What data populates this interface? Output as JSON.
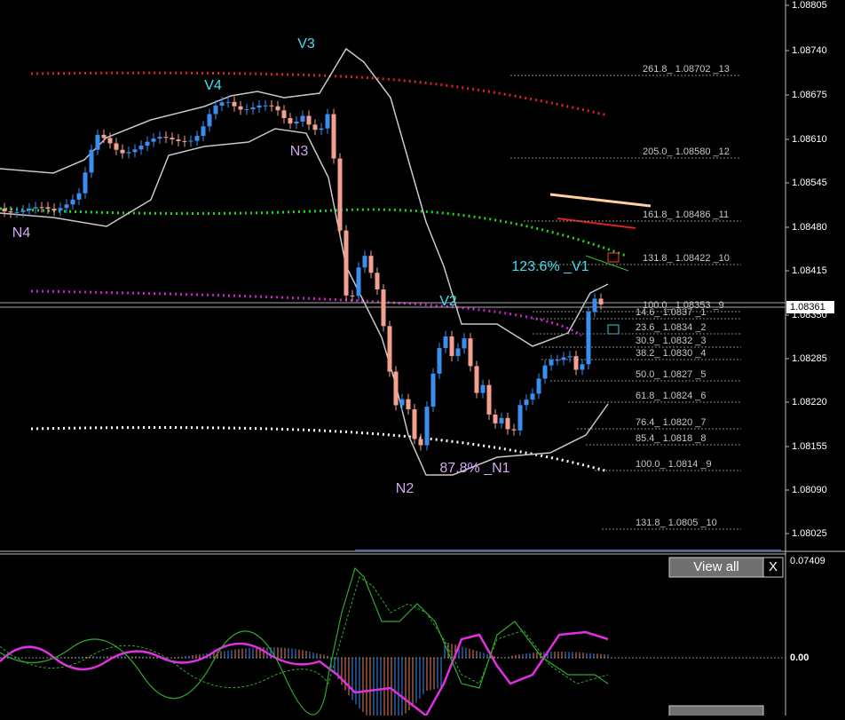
{
  "price_axis": [
    "1.08805",
    "1.08740",
    "1.08675",
    "1.08610",
    "1.08545",
    "1.08480",
    "1.08415",
    "1.08350",
    "1.08285",
    "1.08220",
    "1.08155",
    "1.08090",
    "1.08025"
  ],
  "current_price": "1.08361",
  "fib_levels": [
    "261.8_ 1.08702 _13",
    "205.0_ 1.08580 _12",
    "161.8_ 1.08486 _11",
    "131.8_ 1.08422 _10",
    "100.0_ 1.08353 _9",
    "14.6_ 1.0837 _1",
    "23.6_ 1.0834 _2",
    "30.9_ 1.0832 _3",
    "38.2_ 1.0830 _4",
    "50.0_ 1.0827 _5",
    "61.8_ 1.0824 _6",
    "76.4_ 1.0820 _7",
    "85.4_ 1.0818 _8",
    "100.0_ 1.0814 _9",
    "131.8_ 1.0805 _10"
  ],
  "wave_labels": [
    "V3",
    "V4",
    "N3",
    "N4",
    "N2",
    "87.8% _N1",
    "V2",
    "123.6% _V1"
  ],
  "indicator_axis": [
    "0.07409",
    "0.00"
  ],
  "buttons": {
    "view_all": "View all",
    "close": "X"
  }
}
